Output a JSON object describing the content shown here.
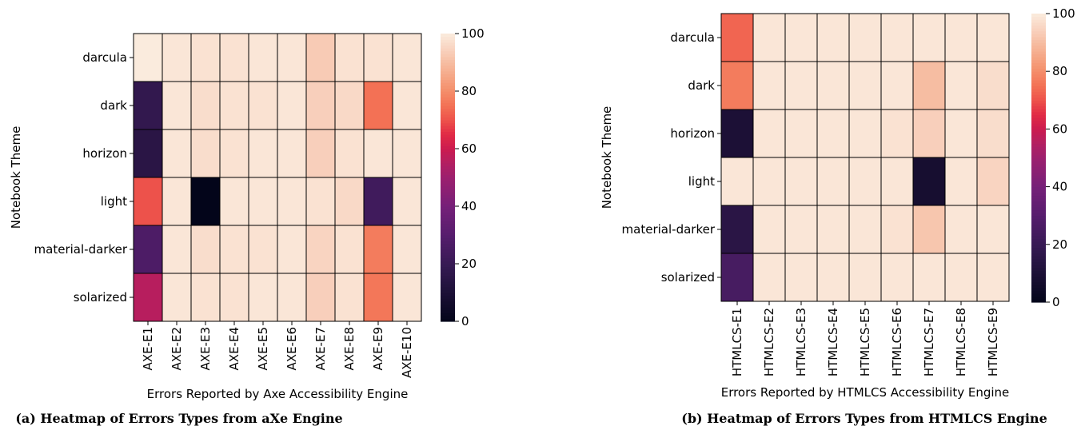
{
  "figure": {
    "captions": [
      "(a) Heatmap of Errors Types from aXe Engine",
      "(b) Heatmap of Errors Types from HTMLCS Engine"
    ]
  },
  "chart_data": [
    {
      "type": "heatmap",
      "title": "",
      "xlabel": "Errors Reported by Axe Accessibility Engine",
      "ylabel": "Notebook Theme",
      "x_categories": [
        "AXE-E1",
        "AXE-E2",
        "AXE-E3",
        "AXE-E4",
        "AXE-E5",
        "AXE-E6",
        "AXE-E7",
        "AXE-E8",
        "AXE-E9",
        "AXE-E10"
      ],
      "y_categories": [
        "darcula",
        "dark",
        "horizon",
        "light",
        "material-darker",
        "solarized"
      ],
      "values": [
        [
          100,
          99,
          98,
          98,
          99,
          99,
          93,
          98,
          98,
          99
        ],
        [
          18,
          99,
          97,
          98,
          98,
          99,
          94,
          96,
          75,
          99
        ],
        [
          15,
          99,
          97,
          98,
          99,
          99,
          94,
          98,
          99,
          99
        ],
        [
          70,
          99,
          0,
          99,
          99,
          99,
          98,
          96,
          23,
          99
        ],
        [
          27,
          99,
          97,
          98,
          98,
          99,
          95,
          98,
          77,
          99
        ],
        [
          56,
          99,
          98,
          98,
          99,
          99,
          94,
          98,
          76,
          99
        ]
      ],
      "colorbar": {
        "min": 0,
        "max": 100,
        "ticks": [
          0,
          20,
          40,
          60,
          80,
          100
        ],
        "colormap": "rocket"
      }
    },
    {
      "type": "heatmap",
      "title": "",
      "xlabel": "Errors Reported by HTMLCS Accessibility Engine",
      "ylabel": "Notebook Theme",
      "x_categories": [
        "HTMLCS-E1",
        "HTMLCS-E2",
        "HTMLCS-E3",
        "HTMLCS-E4",
        "HTMLCS-E5",
        "HTMLCS-E6",
        "HTMLCS-E7",
        "HTMLCS-E8",
        "HTMLCS-E9"
      ],
      "y_categories": [
        "darcula",
        "dark",
        "horizon",
        "light",
        "material-darker",
        "solarized"
      ],
      "values": [
        [
          73,
          99,
          99,
          99,
          99,
          99,
          99,
          99,
          99
        ],
        [
          77,
          99,
          99,
          99,
          99,
          99,
          90,
          99,
          97
        ],
        [
          10,
          99,
          99,
          99,
          99,
          98,
          94,
          99,
          97
        ],
        [
          99,
          99,
          99,
          99,
          99,
          99,
          8,
          99,
          95
        ],
        [
          15,
          99,
          99,
          99,
          99,
          98,
          92,
          99,
          99
        ],
        [
          25,
          99,
          99,
          99,
          99,
          99,
          99,
          99,
          99
        ]
      ],
      "colorbar": {
        "min": 0,
        "max": 100,
        "ticks": [
          0,
          20,
          40,
          60,
          80,
          100
        ],
        "colormap": "rocket"
      }
    }
  ]
}
